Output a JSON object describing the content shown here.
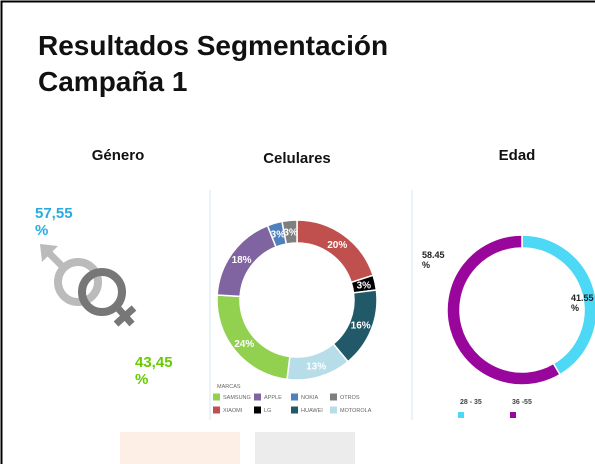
{
  "title": "Resultados Segmentación Campaña 1",
  "chart_data": [
    {
      "type": "pictogram",
      "title": "Género",
      "values": [
        57.55,
        43.45
      ],
      "value_labels": [
        "57,55 %",
        "43,45 %"
      ],
      "colors": [
        "#29abe2",
        "#66cc00"
      ]
    },
    {
      "type": "donut",
      "title": "Celulares",
      "legend_title": "MARCAS",
      "categories": [
        "XIAOMI",
        "LG",
        "HUAWEI",
        "MOTOROLA",
        "SAMSUNG",
        "APPLE",
        "NOKIA",
        "OTROS"
      ],
      "values": [
        20,
        3,
        16,
        13,
        24,
        18,
        3,
        3
      ],
      "value_labels": [
        "20%",
        "3%",
        "16%",
        "13%",
        "24%",
        "18%",
        "3%",
        "3%"
      ],
      "colors": [
        "#c0504d",
        "#000000",
        "#215968",
        "#b7dde8",
        "#92d050",
        "#8064a2",
        "#4f81bd",
        "#7f7f7f"
      ]
    },
    {
      "type": "donut",
      "title": "Edad",
      "categories": [
        "28 - 35",
        "36 -55"
      ],
      "values": [
        41.55,
        58.45
      ],
      "value_labels": [
        "41.55 %",
        "58.45 %"
      ],
      "colors": [
        "#4dd8f5",
        "#99069b"
      ]
    }
  ]
}
